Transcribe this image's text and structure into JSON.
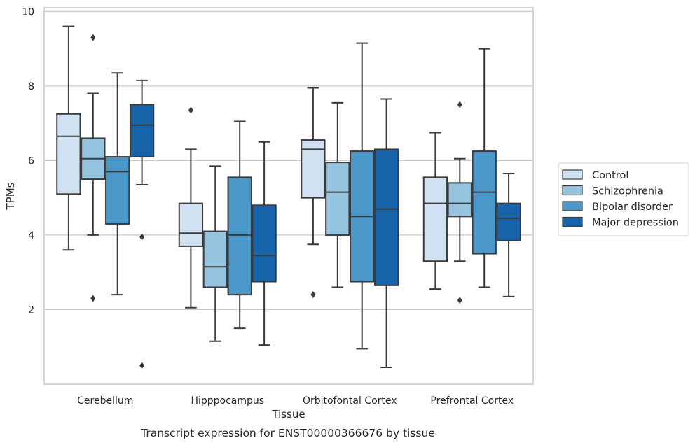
{
  "chart_data": {
    "type": "boxplot",
    "caption": "Transcript expression for ENST00000366676 by tissue",
    "xlabel": "Tissue",
    "ylabel": "TPMs",
    "ylim": [
      0,
      10.1
    ],
    "yticks": [
      2,
      4,
      6,
      8,
      10
    ],
    "grid": "horizontal",
    "legend_position": "right",
    "categories": [
      "Cerebellum",
      "Hipppocampus",
      "Orbitofontal Cortex",
      "Prefrontal Cortex"
    ],
    "series": [
      {
        "name": "Control",
        "color": "#d0e1f2",
        "boxes": [
          {
            "whisker_low": 3.6,
            "q1": 5.1,
            "median": 6.65,
            "q3": 7.25,
            "whisker_high": 9.6,
            "outliers": []
          },
          {
            "whisker_low": 2.05,
            "q1": 3.7,
            "median": 4.05,
            "q3": 4.85,
            "whisker_high": 6.3,
            "outliers": [
              7.35
            ]
          },
          {
            "whisker_low": 3.75,
            "q1": 5.0,
            "median": 6.3,
            "q3": 6.55,
            "whisker_high": 7.95,
            "outliers": [
              2.4
            ]
          },
          {
            "whisker_low": 2.55,
            "q1": 3.3,
            "median": 4.85,
            "q3": 5.55,
            "whisker_high": 6.75,
            "outliers": []
          }
        ]
      },
      {
        "name": "Schizophrenia",
        "color": "#94c4df",
        "boxes": [
          {
            "whisker_low": 4.0,
            "q1": 5.5,
            "median": 6.05,
            "q3": 6.6,
            "whisker_high": 7.8,
            "outliers": [
              9.3,
              2.3
            ]
          },
          {
            "whisker_low": 1.15,
            "q1": 2.6,
            "median": 3.15,
            "q3": 4.1,
            "whisker_high": 5.85,
            "outliers": []
          },
          {
            "whisker_low": 2.6,
            "q1": 4.0,
            "median": 5.15,
            "q3": 5.95,
            "whisker_high": 7.55,
            "outliers": []
          },
          {
            "whisker_low": 3.3,
            "q1": 4.5,
            "median": 4.85,
            "q3": 5.4,
            "whisker_high": 6.05,
            "outliers": [
              7.5,
              2.25
            ]
          }
        ]
      },
      {
        "name": "Bipolar disorder",
        "color": "#4a98c9",
        "boxes": [
          {
            "whisker_low": 2.4,
            "q1": 4.3,
            "median": 5.7,
            "q3": 6.1,
            "whisker_high": 8.35,
            "outliers": []
          },
          {
            "whisker_low": 1.5,
            "q1": 2.4,
            "median": 4.0,
            "q3": 5.55,
            "whisker_high": 7.05,
            "outliers": []
          },
          {
            "whisker_low": 0.95,
            "q1": 2.75,
            "median": 4.5,
            "q3": 6.25,
            "whisker_high": 9.15,
            "outliers": []
          },
          {
            "whisker_low": 2.6,
            "q1": 3.5,
            "median": 5.15,
            "q3": 6.25,
            "whisker_high": 9.0,
            "outliers": []
          }
        ]
      },
      {
        "name": "Major depression",
        "color": "#1764ab",
        "boxes": [
          {
            "whisker_low": 5.35,
            "q1": 6.1,
            "median": 6.95,
            "q3": 7.5,
            "whisker_high": 8.15,
            "outliers": [
              3.95,
              0.5
            ]
          },
          {
            "whisker_low": 1.05,
            "q1": 2.75,
            "median": 3.45,
            "q3": 4.8,
            "whisker_high": 6.5,
            "outliers": []
          },
          {
            "whisker_low": 0.45,
            "q1": 2.65,
            "median": 4.7,
            "q3": 6.3,
            "whisker_high": 7.65,
            "outliers": []
          },
          {
            "whisker_low": 2.35,
            "q1": 3.85,
            "median": 4.45,
            "q3": 4.85,
            "whisker_high": 5.65,
            "outliers": []
          }
        ]
      }
    ]
  }
}
